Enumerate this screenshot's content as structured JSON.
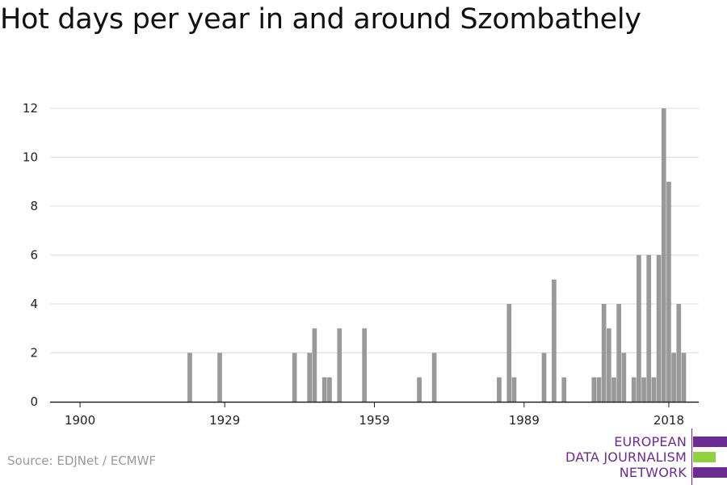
{
  "page": {
    "title": "Hot days per year in and around Szombathely",
    "source": "Source: EDJNet / ECMWF"
  },
  "logo": {
    "lines": [
      "EUROPEAN",
      "DATA JOURNALISM",
      "NETWORK"
    ],
    "colors": [
      "#6b2c91",
      "#8fd13f",
      "#6b2c91"
    ]
  },
  "chart_data": {
    "type": "bar",
    "title": "Hot days per year in and around Szombathely",
    "xlabel": "",
    "ylabel": "",
    "xlim": [
      1894,
      2024
    ],
    "ylim": [
      0,
      12
    ],
    "x_ticks": [
      1900,
      1929,
      1959,
      1989,
      2018
    ],
    "y_ticks": [
      0,
      2,
      4,
      6,
      8,
      10,
      12
    ],
    "grid": true,
    "bar_color": "#999999",
    "x": [
      1922,
      1928,
      1943,
      1946,
      1947,
      1949,
      1950,
      1952,
      1957,
      1968,
      1971,
      1984,
      1986,
      1987,
      1993,
      1995,
      1997,
      2003,
      2004,
      2005,
      2006,
      2007,
      2008,
      2009,
      2011,
      2012,
      2013,
      2014,
      2015,
      2016,
      2017,
      2018,
      2019,
      2020,
      2021,
      2022
    ],
    "values": [
      2,
      2,
      2,
      2,
      3,
      1,
      1,
      3,
      3,
      1,
      2,
      1,
      4,
      1,
      2,
      5,
      1,
      1,
      1,
      4,
      3,
      1,
      4,
      2,
      1,
      6,
      1,
      6,
      1,
      6,
      12,
      9,
      2,
      4,
      2,
      0
    ]
  }
}
